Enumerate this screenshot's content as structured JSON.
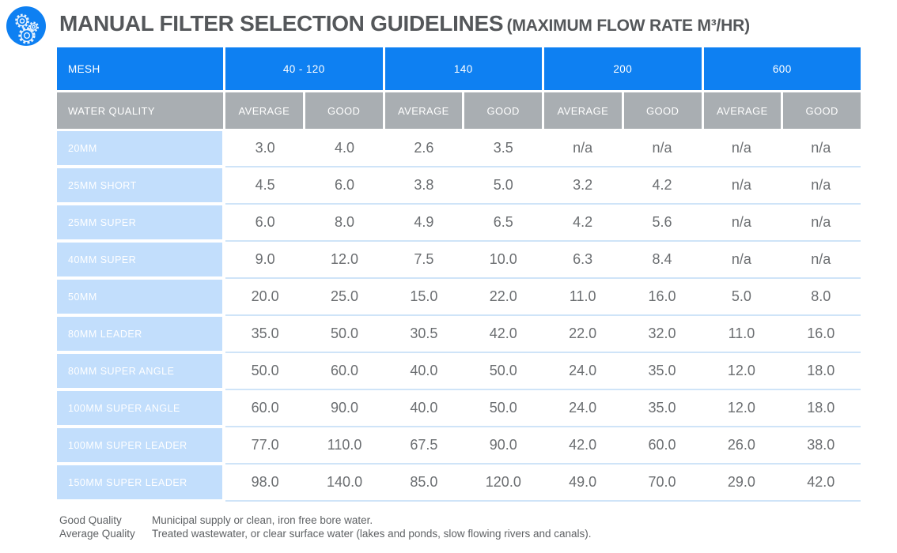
{
  "header": {
    "title": "MANUAL FILTER SELECTION GUIDELINES",
    "subtitle": "(MAXIMUM FLOW RATE M³/HR)"
  },
  "table": {
    "mesh_header_label": "MESH",
    "mesh_groups": [
      "40 - 120",
      "140",
      "200",
      "600"
    ],
    "water_quality_label": "WATER QUALITY",
    "quality_columns": [
      "AVERAGE",
      "GOOD",
      "AVERAGE",
      "GOOD",
      "AVERAGE",
      "GOOD",
      "AVERAGE",
      "GOOD"
    ],
    "rows": [
      {
        "label": "20MM",
        "values": [
          "3.0",
          "4.0",
          "2.6",
          "3.5",
          "n/a",
          "n/a",
          "n/a",
          "n/a"
        ]
      },
      {
        "label": "25MM SHORT",
        "values": [
          "4.5",
          "6.0",
          "3.8",
          "5.0",
          "3.2",
          "4.2",
          "n/a",
          "n/a"
        ]
      },
      {
        "label": "25MM SUPER",
        "values": [
          "6.0",
          "8.0",
          "4.9",
          "6.5",
          "4.2",
          "5.6",
          "n/a",
          "n/a"
        ]
      },
      {
        "label": "40MM SUPER",
        "values": [
          "9.0",
          "12.0",
          "7.5",
          "10.0",
          "6.3",
          "8.4",
          "n/a",
          "n/a"
        ]
      },
      {
        "label": "50MM",
        "values": [
          "20.0",
          "25.0",
          "15.0",
          "22.0",
          "11.0",
          "16.0",
          "5.0",
          "8.0"
        ]
      },
      {
        "label": "80MM LEADER",
        "values": [
          "35.0",
          "50.0",
          "30.5",
          "42.0",
          "22.0",
          "32.0",
          "11.0",
          "16.0"
        ]
      },
      {
        "label": "80MM SUPER ANGLE",
        "values": [
          "50.0",
          "60.0",
          "40.0",
          "50.0",
          "24.0",
          "35.0",
          "12.0",
          "18.0"
        ]
      },
      {
        "label": "100MM SUPER ANGLE",
        "values": [
          "60.0",
          "90.0",
          "40.0",
          "50.0",
          "24.0",
          "35.0",
          "12.0",
          "18.0"
        ]
      },
      {
        "label": "100MM SUPER LEADER",
        "values": [
          "77.0",
          "110.0",
          "67.5",
          "90.0",
          "42.0",
          "60.0",
          "26.0",
          "38.0"
        ]
      },
      {
        "label": "150MM SUPER LEADER",
        "values": [
          "98.0",
          "140.0",
          "85.0",
          "120.0",
          "49.0",
          "70.0",
          "29.0",
          "42.0"
        ]
      }
    ]
  },
  "legend": {
    "items": [
      {
        "term": "Good Quality",
        "description": "Municipal supply or clean, iron free bore water."
      },
      {
        "term": "Average Quality",
        "description": "Treated wastewater, or clear surface water (lakes and ponds, slow flowing rivers and canals)."
      }
    ]
  },
  "colors": {
    "header_blue": "#0e80f2",
    "header_gray": "#a9aeb2",
    "row_label_blue": "#c2defc",
    "separator_blue": "#cfe4f8",
    "title_gray": "#54575a",
    "value_gray": "#6b6e71"
  }
}
